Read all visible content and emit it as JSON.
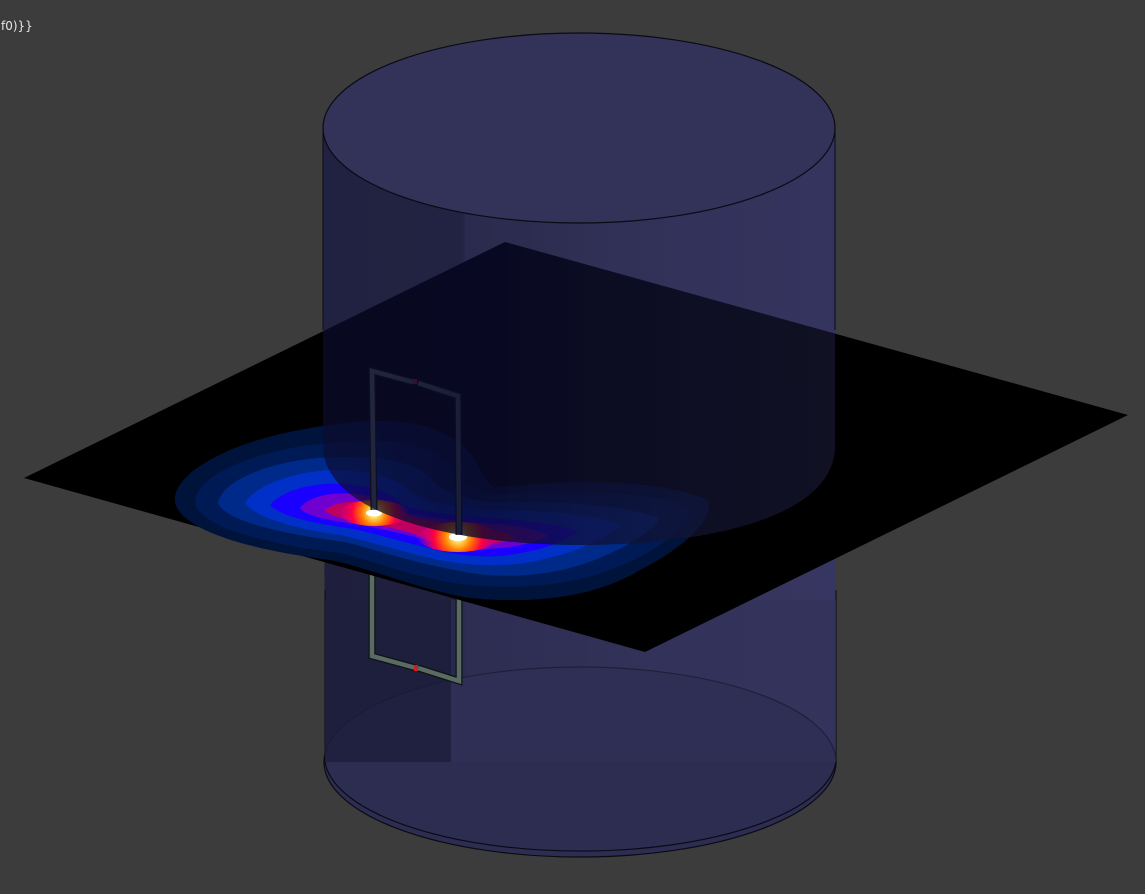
{
  "viewport": {
    "overlay_text": "f0)}}",
    "background_color": "#3c3c3c"
  },
  "scene": {
    "cylinder_color": "#33335a",
    "plane_color": "#000000",
    "coil_color": "#5a6a64",
    "port_color": "#cc2020",
    "field_colormap": [
      "#001040",
      "#0030a0",
      "#0000ff",
      "#8000c0",
      "#ff0000",
      "#ffa000",
      "#ffffff"
    ]
  }
}
